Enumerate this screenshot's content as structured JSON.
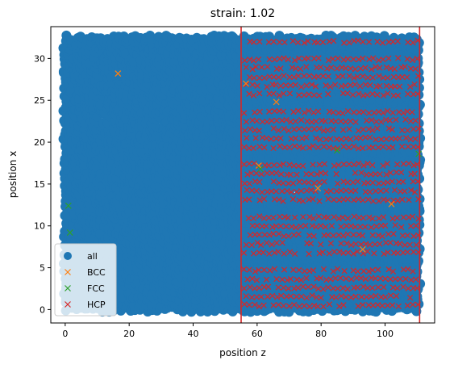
{
  "chart_data": {
    "type": "scatter",
    "title": "strain: 1.02",
    "xlabel": "position z",
    "ylabel": "position x",
    "xlim": [
      -4.5,
      115.5
    ],
    "ylim": [
      -1.6,
      33.8
    ],
    "xticks": [
      0,
      20,
      40,
      60,
      80,
      100
    ],
    "yticks": [
      0,
      5,
      10,
      15,
      20,
      25,
      30
    ],
    "grid": false,
    "legend_position": "lower-left",
    "vlines": [
      {
        "x": 55.0,
        "color": "#d62728"
      },
      {
        "x": 110.8,
        "color": "#d62728"
      }
    ],
    "series": [
      {
        "name": "all",
        "marker": "o",
        "color": "#1f77b4",
        "region": {
          "x": [
            0,
            111
          ],
          "y": [
            0,
            32.5
          ]
        },
        "description_note": ""
      },
      {
        "name": "BCC",
        "marker": "x",
        "color": "#ff7f0e",
        "points": [
          [
            16.5,
            28.2
          ],
          [
            56.5,
            27.0
          ],
          [
            66,
            24.8
          ],
          [
            60.5,
            17.2
          ],
          [
            79,
            14.5
          ],
          [
            93,
            7.2
          ],
          [
            102,
            12.6
          ]
        ]
      },
      {
        "name": "FCC",
        "marker": "x",
        "color": "#2ca02c",
        "points": [
          [
            1.0,
            12.4
          ],
          [
            1.5,
            9.2
          ],
          [
            110.5,
            18.6
          ],
          [
            61,
            16.8
          ],
          [
            85,
            19.0
          ]
        ]
      },
      {
        "name": "HCP",
        "marker": "x",
        "color": "#d62728",
        "region": {
          "x": [
            55,
            111
          ],
          "y": [
            0.5,
            32.5
          ]
        },
        "row_spacing": 1.05,
        "col_spacing": 1.55
      }
    ]
  }
}
